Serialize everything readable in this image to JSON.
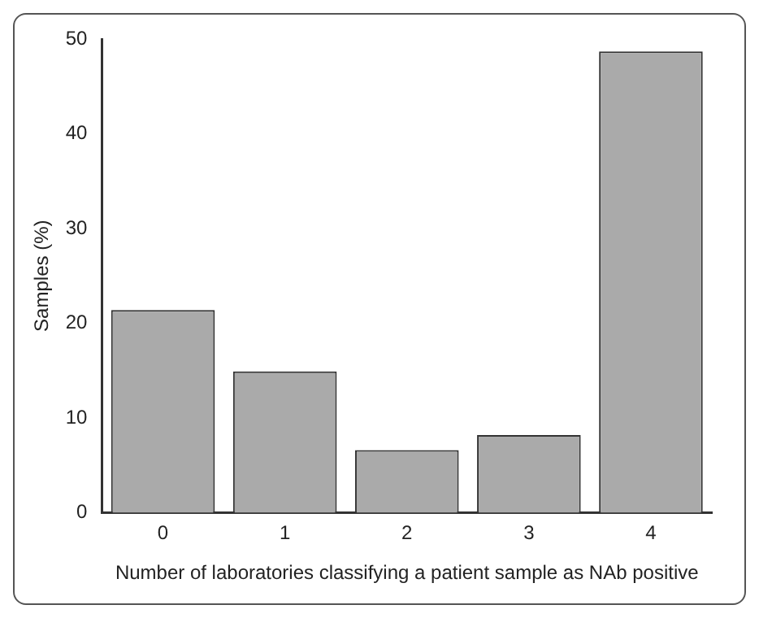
{
  "chart_data": {
    "type": "bar",
    "xlabel": "Number of laboratories classifying a patient sample as NAb positive",
    "ylabel": "Samples (%)",
    "categories": [
      "0",
      "1",
      "2",
      "3",
      "4"
    ],
    "values": [
      21.4,
      14.9,
      6.6,
      8.2,
      48.7
    ],
    "color": "#aaaaaa",
    "ylim": [
      0,
      50
    ],
    "yticks": [
      0,
      10,
      20,
      30,
      40,
      50
    ],
    "grid": false
  }
}
